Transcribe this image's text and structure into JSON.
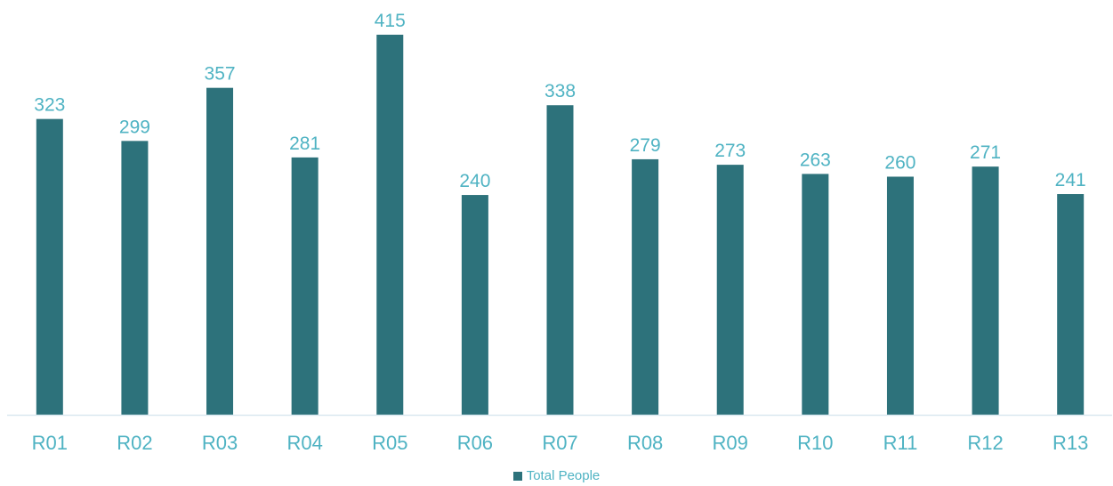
{
  "chart_data": {
    "type": "bar",
    "categories": [
      "R01",
      "R02",
      "R03",
      "R04",
      "R05",
      "R06",
      "R07",
      "R08",
      "R09",
      "R10",
      "R11",
      "R12",
      "R13"
    ],
    "series": [
      {
        "name": "Total People",
        "values": [
          323,
          299,
          357,
          281,
          415,
          240,
          338,
          279,
          273,
          263,
          260,
          271,
          241
        ]
      }
    ],
    "title": "",
    "xlabel": "",
    "ylabel": "",
    "ylim": [
      0,
      415
    ],
    "grid": false,
    "data_labels": true,
    "legend_position": "bottom"
  },
  "colors": {
    "bar": "#2d727b",
    "label_text": "#4fb3c3",
    "axis_line": "#d9e8ef"
  }
}
